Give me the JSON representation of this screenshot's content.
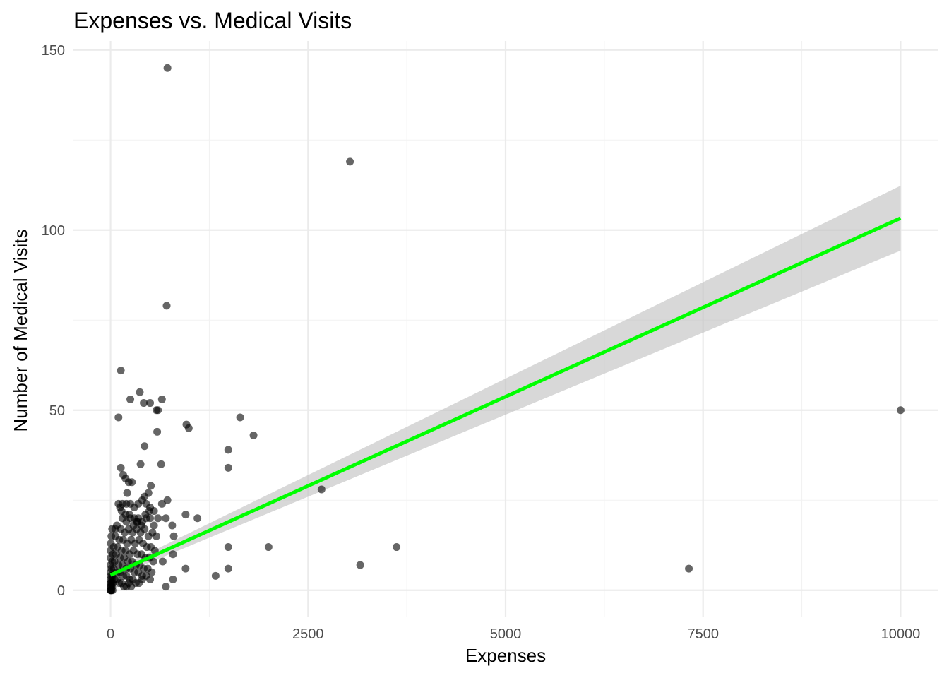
{
  "chart_data": {
    "type": "scatter",
    "title": "Expenses vs. Medical Visits",
    "xlabel": "Expenses",
    "ylabel": "Number of Medical Visits",
    "xlim": [
      -470,
      10470
    ],
    "ylim": [
      -7.5,
      152.5
    ],
    "x_ticks": [
      0,
      2500,
      5000,
      7500,
      10000
    ],
    "y_ticks": [
      0,
      50,
      100,
      150
    ],
    "grid": true,
    "legend": "none",
    "colors": {
      "points": "#000000",
      "fit_line": "#00ff00",
      "confidence_band": "#bebebe"
    },
    "points": [
      [
        720,
        145
      ],
      [
        3030,
        119
      ],
      [
        710,
        79
      ],
      [
        10000,
        50
      ],
      [
        7320,
        6
      ],
      [
        3620,
        12
      ],
      [
        3160,
        7
      ],
      [
        2000,
        12
      ],
      [
        2670,
        28
      ],
      [
        1640,
        48
      ],
      [
        1810,
        43
      ],
      [
        1490,
        39
      ],
      [
        1490,
        34
      ],
      [
        1490,
        12
      ],
      [
        1490,
        6
      ],
      [
        1330,
        4
      ],
      [
        960,
        46
      ],
      [
        990,
        45
      ],
      [
        950,
        21
      ],
      [
        1100,
        20
      ],
      [
        950,
        6
      ],
      [
        130,
        61
      ],
      [
        100,
        48
      ],
      [
        250,
        53
      ],
      [
        370,
        55
      ],
      [
        420,
        52
      ],
      [
        500,
        52
      ],
      [
        580,
        50
      ],
      [
        600,
        50
      ],
      [
        650,
        53
      ],
      [
        590,
        44
      ],
      [
        430,
        40
      ],
      [
        380,
        35
      ],
      [
        640,
        35
      ],
      [
        130,
        34
      ],
      [
        160,
        32
      ],
      [
        190,
        31
      ],
      [
        230,
        30
      ],
      [
        270,
        30
      ],
      [
        210,
        27
      ],
      [
        510,
        29
      ],
      [
        480,
        27
      ],
      [
        720,
        25
      ],
      [
        650,
        24
      ],
      [
        700,
        20
      ],
      [
        780,
        18
      ],
      [
        800,
        15
      ],
      [
        790,
        10
      ],
      [
        660,
        8
      ],
      [
        700,
        1
      ],
      [
        790,
        3
      ],
      [
        100,
        24
      ],
      [
        120,
        23
      ],
      [
        150,
        24
      ],
      [
        200,
        24
      ],
      [
        250,
        24
      ],
      [
        300,
        23
      ],
      [
        350,
        24
      ],
      [
        400,
        25
      ],
      [
        450,
        24
      ],
      [
        500,
        23
      ],
      [
        550,
        22
      ],
      [
        150,
        20
      ],
      [
        200,
        19
      ],
      [
        250,
        20
      ],
      [
        300,
        20
      ],
      [
        350,
        20
      ],
      [
        400,
        19
      ],
      [
        450,
        20
      ],
      [
        500,
        20
      ],
      [
        550,
        18
      ],
      [
        600,
        20
      ],
      [
        80,
        18
      ],
      [
        130,
        17
      ],
      [
        180,
        16
      ],
      [
        230,
        17
      ],
      [
        280,
        16
      ],
      [
        330,
        17
      ],
      [
        380,
        16
      ],
      [
        430,
        17
      ],
      [
        480,
        15
      ],
      [
        530,
        16
      ],
      [
        580,
        15
      ],
      [
        60,
        15
      ],
      [
        110,
        14
      ],
      [
        160,
        14
      ],
      [
        210,
        13
      ],
      [
        260,
        14
      ],
      [
        310,
        13
      ],
      [
        360,
        14
      ],
      [
        410,
        13
      ],
      [
        460,
        12
      ],
      [
        510,
        12
      ],
      [
        560,
        11
      ],
      [
        40,
        12
      ],
      [
        90,
        12
      ],
      [
        140,
        11
      ],
      [
        190,
        11
      ],
      [
        240,
        10
      ],
      [
        290,
        11
      ],
      [
        340,
        10
      ],
      [
        390,
        10
      ],
      [
        440,
        9
      ],
      [
        490,
        9
      ],
      [
        540,
        8
      ],
      [
        30,
        10
      ],
      [
        70,
        10
      ],
      [
        120,
        9
      ],
      [
        170,
        9
      ],
      [
        220,
        8
      ],
      [
        270,
        8
      ],
      [
        320,
        7
      ],
      [
        370,
        7
      ],
      [
        420,
        6
      ],
      [
        470,
        6
      ],
      [
        520,
        5
      ],
      [
        20,
        8
      ],
      [
        50,
        8
      ],
      [
        100,
        7
      ],
      [
        150,
        7
      ],
      [
        200,
        6
      ],
      [
        250,
        6
      ],
      [
        300,
        5
      ],
      [
        350,
        5
      ],
      [
        400,
        4
      ],
      [
        450,
        4
      ],
      [
        500,
        3
      ],
      [
        10,
        6
      ],
      [
        40,
        6
      ],
      [
        80,
        5
      ],
      [
        120,
        5
      ],
      [
        160,
        4
      ],
      [
        200,
        4
      ],
      [
        240,
        3
      ],
      [
        280,
        3
      ],
      [
        320,
        2
      ],
      [
        360,
        2
      ],
      [
        400,
        3
      ],
      [
        5,
        4
      ],
      [
        20,
        4
      ],
      [
        50,
        3
      ],
      [
        80,
        3
      ],
      [
        110,
        2
      ],
      [
        140,
        2
      ],
      [
        170,
        1
      ],
      [
        200,
        1
      ],
      [
        230,
        2
      ],
      [
        260,
        1
      ],
      [
        0,
        0
      ],
      [
        2,
        0
      ],
      [
        4,
        1
      ],
      [
        6,
        0
      ],
      [
        8,
        2
      ],
      [
        10,
        1
      ],
      [
        12,
        0
      ],
      [
        15,
        3
      ],
      [
        18,
        2
      ],
      [
        22,
        1
      ],
      [
        25,
        0
      ],
      [
        30,
        2
      ],
      [
        0,
        1
      ],
      [
        0,
        2
      ],
      [
        0,
        3
      ],
      [
        0,
        5
      ],
      [
        0,
        7
      ],
      [
        0,
        9
      ],
      [
        0,
        11
      ],
      [
        3,
        13
      ],
      [
        10,
        15
      ],
      [
        20,
        17
      ],
      [
        60,
        17
      ],
      [
        140,
        22
      ],
      [
        190,
        21
      ],
      [
        240,
        21
      ],
      [
        290,
        18
      ],
      [
        340,
        19
      ],
      [
        390,
        18
      ],
      [
        440,
        21
      ],
      [
        490,
        22
      ],
      [
        430,
        26
      ],
      [
        330,
        19
      ]
    ],
    "fit": {
      "x_start": 0,
      "y_start": 4.2,
      "x_end": 10000,
      "y_end": 103.3
    },
    "confidence_band": {
      "at_start": [
        3.2,
        5.2
      ],
      "at_end": [
        94.3,
        112.3
      ]
    }
  }
}
